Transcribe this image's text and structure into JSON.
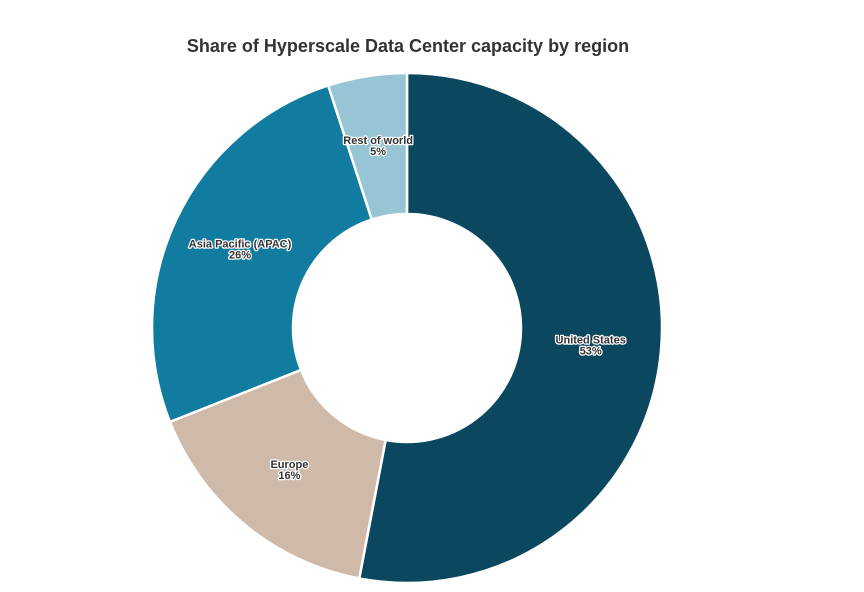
{
  "chart_data": {
    "type": "pie",
    "variant": "donut",
    "title": "Share of Hyperscale Data Center capacity by region",
    "slices": [
      {
        "label": "United States",
        "value": 53,
        "value_label": "53%",
        "color": "#0b475e"
      },
      {
        "label": "Europe",
        "value": 16,
        "value_label": "16%",
        "color": "#cfb9a9"
      },
      {
        "label": "Asia Pacific (APAC)",
        "value": 26,
        "value_label": "26%",
        "color": "#117ba0"
      },
      {
        "label": "Rest of world",
        "value": 5,
        "value_label": "5%",
        "color": "#97c5d5"
      }
    ],
    "start": "top",
    "direction": "clockwise",
    "slice_border_color": "#ffffff"
  }
}
